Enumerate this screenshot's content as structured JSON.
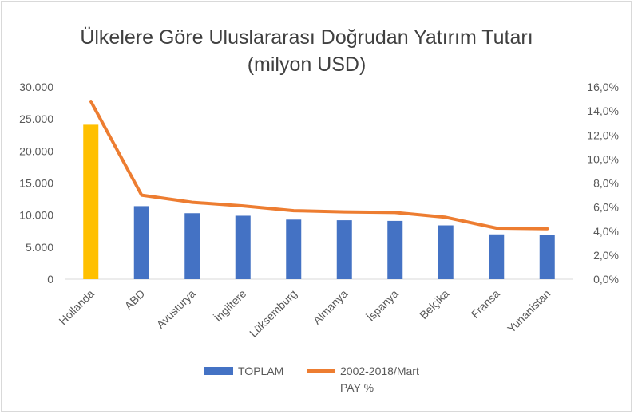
{
  "chart_data": {
    "type": "bar+line",
    "title_line1": "Ülkelere Göre Uluslararası Doğrudan Yatırım Tutarı",
    "title_line2": "(milyon USD)",
    "categories": [
      "Hollanda",
      "ABD",
      "Avusturya",
      "İngiltere",
      "Lüksemburg",
      "Almanya",
      "İspanya",
      "Belçika",
      "Fransa",
      "Yunanistan"
    ],
    "series": [
      {
        "name": "TOPLAM",
        "type": "bar",
        "axis": "left",
        "color": "#4472c4",
        "highlight_color": "#ffc000",
        "highlight_index": 0,
        "values": [
          24100,
          11400,
          10300,
          9900,
          9300,
          9200,
          9100,
          8400,
          7000,
          6900
        ]
      },
      {
        "name": "2002-2018/Mart PAY %",
        "type": "line",
        "axis": "right",
        "color": "#ed7d31",
        "values": [
          14.8,
          7.0,
          6.4,
          6.1,
          5.7,
          5.6,
          5.55,
          5.15,
          4.25,
          4.2
        ]
      }
    ],
    "y_left": {
      "lim": [
        0,
        30000
      ],
      "ticks": [
        "0",
        "5.000",
        "10.000",
        "15.000",
        "20.000",
        "25.000",
        "30.000"
      ]
    },
    "y_right": {
      "lim": [
        0,
        16
      ],
      "ticks": [
        "0,0%",
        "2,0%",
        "4,0%",
        "6,0%",
        "8,0%",
        "10,0%",
        "12,0%",
        "14,0%",
        "16,0%"
      ]
    },
    "legend": {
      "position": "bottom",
      "bar_label": "TOPLAM",
      "line_label_1": "2002-2018/Mart",
      "line_label_2": "PAY %"
    },
    "grid": false
  }
}
